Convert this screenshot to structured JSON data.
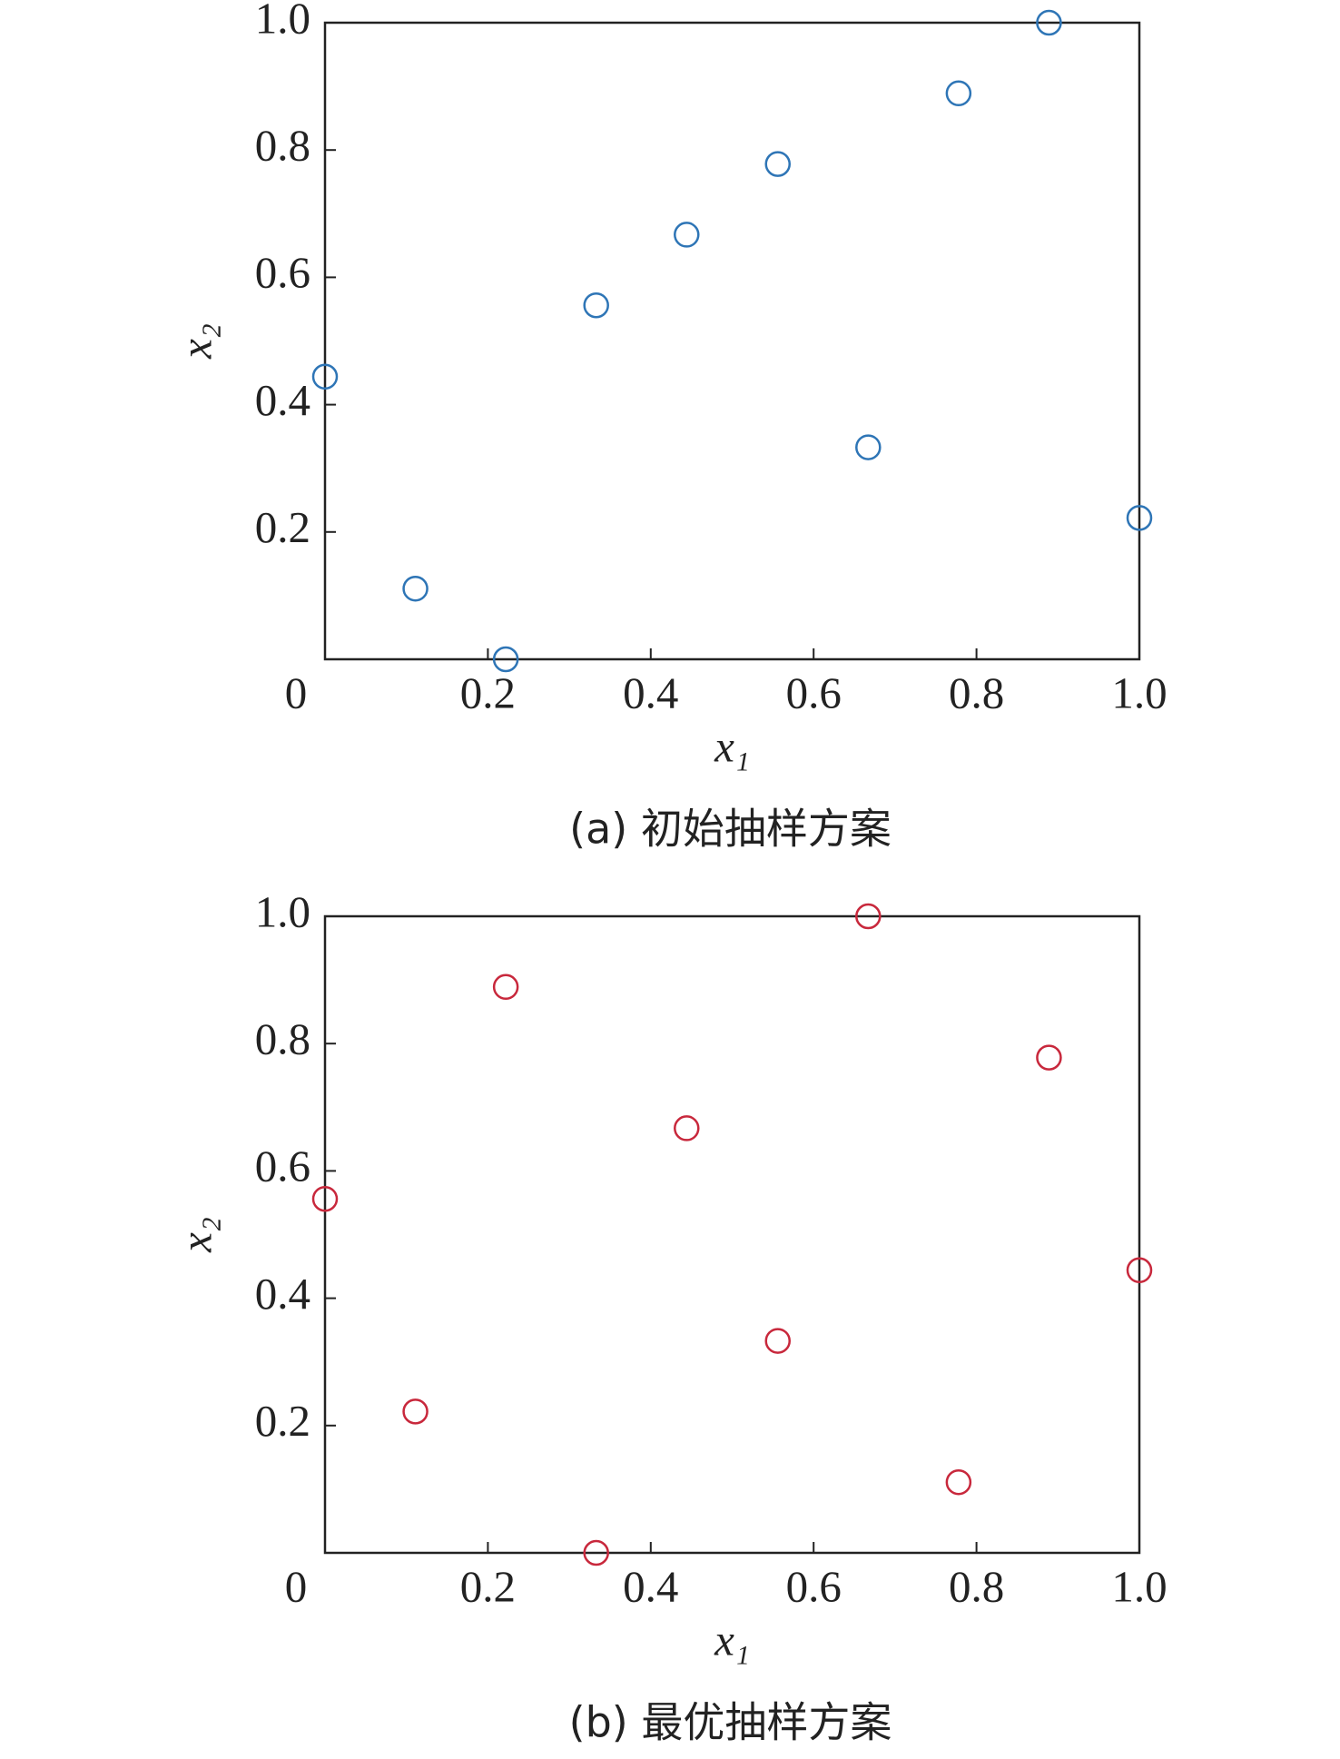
{
  "chart_data": [
    {
      "type": "scatter",
      "title": "(a) 初始抽样方案",
      "xlabel": "x₁",
      "ylabel": "x₂",
      "x": [
        0,
        0.111,
        0.222,
        0.333,
        0.444,
        0.556,
        0.667,
        0.778,
        0.889,
        1.0
      ],
      "values": [
        0.444,
        0.111,
        0,
        0.556,
        0.667,
        0.778,
        0.333,
        0.889,
        1.0,
        0.222
      ],
      "color": "#2e75b6",
      "xlim": [
        0,
        1
      ],
      "ylim": [
        0,
        1
      ],
      "xticks": [
        0,
        0.2,
        0.4,
        0.6,
        0.8,
        {
          "value": 1,
          "label": "1.0"
        }
      ],
      "yticks": [
        0.2,
        0.4,
        0.6,
        0.8,
        {
          "value": 1,
          "label": "1.0"
        }
      ]
    },
    {
      "type": "scatter",
      "title": "(b) 最优抽样方案",
      "xlabel": "x₁",
      "ylabel": "x₂",
      "x": [
        0,
        0.111,
        0.222,
        0.333,
        0.444,
        0.556,
        0.667,
        0.778,
        0.889,
        1.0
      ],
      "values": [
        0.556,
        0.222,
        0.889,
        0,
        0.667,
        0.333,
        1.0,
        0.111,
        0.778,
        0.444
      ],
      "color": "#c8283c",
      "xlim": [
        0,
        1
      ],
      "ylim": [
        0,
        1
      ],
      "xticks": [
        0,
        0.2,
        0.4,
        0.6,
        0.8,
        {
          "value": 1,
          "label": "1.0"
        }
      ],
      "yticks": [
        0.2,
        0.4,
        0.6,
        0.8,
        {
          "value": 1,
          "label": "1.0"
        }
      ]
    }
  ]
}
